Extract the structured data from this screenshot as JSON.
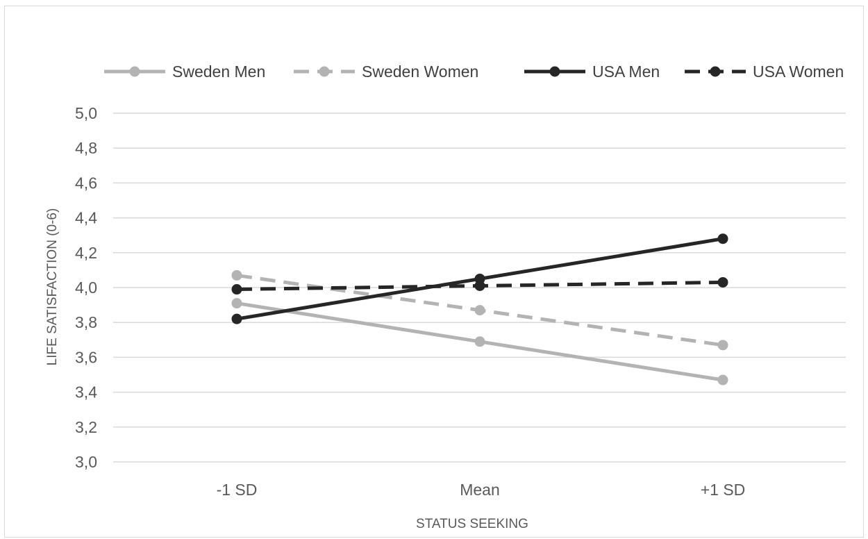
{
  "chart_data": {
    "type": "line",
    "title": "",
    "xlabel": "STATUS SEEKING",
    "ylabel": "LIFE SATISFACTION (0-6)",
    "categories": [
      "-1 SD",
      "Mean",
      "+1 SD"
    ],
    "ylim": [
      3.0,
      5.0
    ],
    "yticks": [
      "3,0",
      "3,2",
      "3,4",
      "3,6",
      "3,8",
      "4,0",
      "4,2",
      "4,4",
      "4,6",
      "4,8",
      "5,0"
    ],
    "grid": true,
    "legend_position": "top",
    "series": [
      {
        "name": "Sweden Men",
        "values": [
          3.91,
          3.69,
          3.47
        ],
        "color": "#b3b3b3",
        "dashed": false
      },
      {
        "name": "Sweden Women",
        "values": [
          4.07,
          3.87,
          3.67
        ],
        "color": "#b3b3b3",
        "dashed": true
      },
      {
        "name": "USA Men",
        "values": [
          3.82,
          4.05,
          4.28
        ],
        "color": "#262626",
        "dashed": false
      },
      {
        "name": "USA Women",
        "values": [
          3.99,
          4.01,
          4.03
        ],
        "color": "#262626",
        "dashed": true
      }
    ]
  }
}
